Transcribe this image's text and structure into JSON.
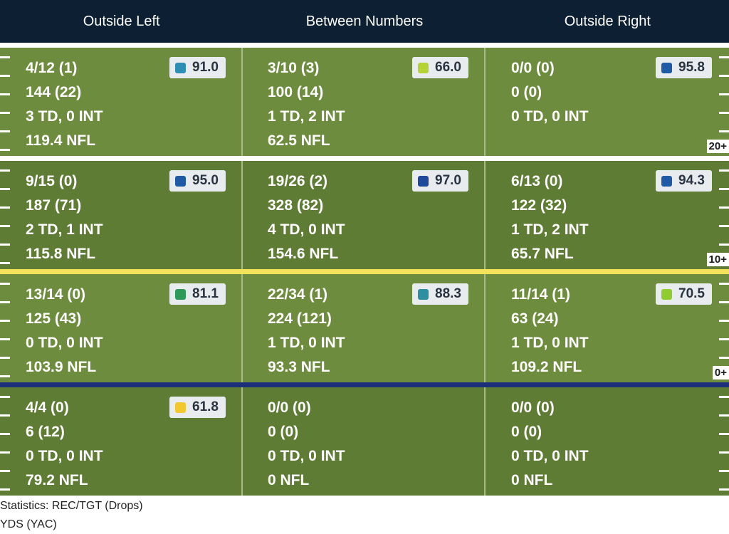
{
  "columns": [
    "Outside Left",
    "Between Numbers",
    "Outside Right"
  ],
  "colors": {
    "header_bg": "#0c1f33",
    "row_light": "#6e8c3e",
    "row_dark": "#5f7c35",
    "line_white": "#ffffff",
    "line_yellow": "#f2e35a",
    "line_blue": "#1c2f7a"
  },
  "yard_markers": [
    "20+",
    "10+",
    "0+"
  ],
  "rows": [
    {
      "cells": [
        {
          "lines": [
            "4/12 (1)",
            "144 (22)",
            "3 TD, 0 INT",
            "119.4 NFL"
          ],
          "grade": "91.0",
          "grade_color": "#2e8fb5"
        },
        {
          "lines": [
            "3/10 (3)",
            "100 (14)",
            "1 TD, 2 INT",
            "62.5 NFL"
          ],
          "grade": "66.0",
          "grade_color": "#b5d334"
        },
        {
          "lines": [
            "0/0 (0)",
            "0 (0)",
            "0 TD, 0 INT",
            ""
          ],
          "grade": "95.8",
          "grade_color": "#1f5aa6"
        }
      ]
    },
    {
      "cells": [
        {
          "lines": [
            "9/15 (0)",
            "187 (71)",
            "2 TD, 1 INT",
            "115.8 NFL"
          ],
          "grade": "95.0",
          "grade_color": "#1f5aa6"
        },
        {
          "lines": [
            "19/26 (2)",
            "328 (82)",
            "4 TD, 0 INT",
            "154.6 NFL"
          ],
          "grade": "97.0",
          "grade_color": "#1e4a9c"
        },
        {
          "lines": [
            "6/13 (0)",
            "122 (32)",
            "1 TD, 2 INT",
            "65.7 NFL"
          ],
          "grade": "94.3",
          "grade_color": "#1f5aa6"
        }
      ]
    },
    {
      "cells": [
        {
          "lines": [
            "13/14 (0)",
            "125 (43)",
            "0 TD, 0 INT",
            "103.9 NFL"
          ],
          "grade": "81.1",
          "grade_color": "#2e9a5a"
        },
        {
          "lines": [
            "22/34 (1)",
            "224 (121)",
            "1 TD, 0 INT",
            "93.3 NFL"
          ],
          "grade": "88.3",
          "grade_color": "#2e8fa0"
        },
        {
          "lines": [
            "11/14 (1)",
            "63 (24)",
            "1 TD, 0 INT",
            "109.2 NFL"
          ],
          "grade": "70.5",
          "grade_color": "#8fcc2e"
        }
      ]
    },
    {
      "cells": [
        {
          "lines": [
            "4/4 (0)",
            "6 (12)",
            "0 TD, 0 INT",
            "79.2 NFL"
          ],
          "grade": "61.8",
          "grade_color": "#f2c82e"
        },
        {
          "lines": [
            "0/0 (0)",
            "0 (0)",
            "0 TD, 0 INT",
            "0 NFL"
          ],
          "grade": "",
          "grade_color": ""
        },
        {
          "lines": [
            "0/0 (0)",
            "0 (0)",
            "0 TD, 0 INT",
            "0 NFL"
          ],
          "grade": "",
          "grade_color": ""
        }
      ]
    }
  ],
  "footer": [
    "Statistics: REC/TGT (Drops)",
    "YDS (YAC)"
  ]
}
